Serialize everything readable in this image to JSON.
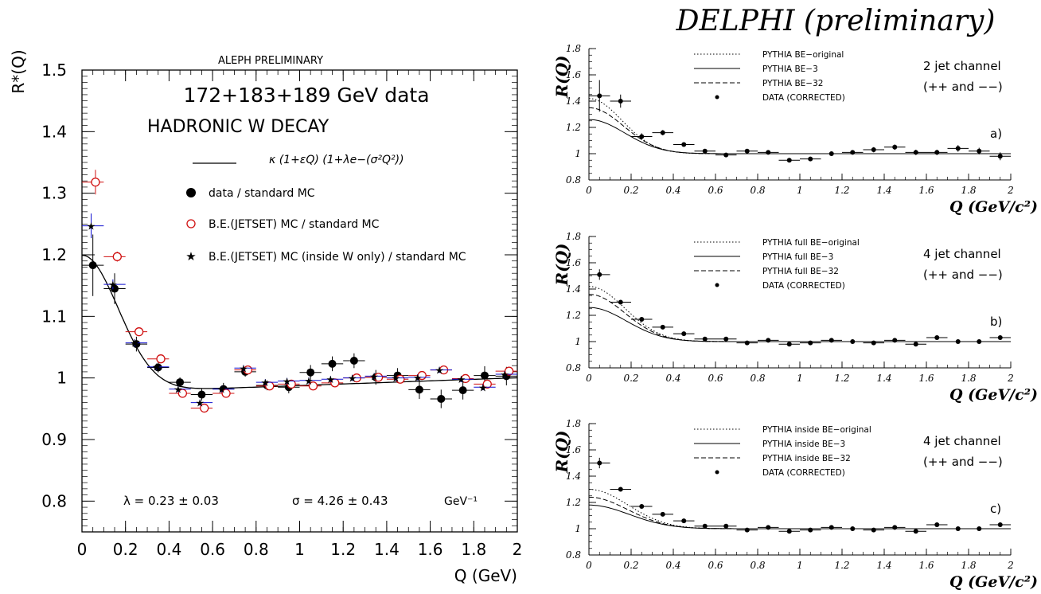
{
  "figure": {
    "delphi_title": "DELPHI (preliminary)"
  },
  "chart_data": [
    {
      "id": "aleph",
      "type": "scatter",
      "title": "ALEPH PRELIMINARY",
      "subtitle_1": "172+183+189 GeV data",
      "subtitle_2": "HADRONIC W DECAY",
      "xlabel": "Q (GeV)",
      "ylabel": "R*(Q)",
      "xlim": [
        0,
        2
      ],
      "ylim": [
        0.75,
        1.5
      ],
      "xticks": [
        "0",
        "0.2",
        "0.4",
        "0.6",
        "0.8",
        "1",
        "1.2",
        "1.4",
        "1.6",
        "1.8",
        "2"
      ],
      "yticks": [
        "0.8",
        "0.9",
        "1",
        "1.1",
        "1.2",
        "1.3",
        "1.4",
        "1.5"
      ],
      "legend": [
        {
          "key": "fit",
          "label": "κ (1+εQ) (1+λe−(σ²Q²))"
        },
        {
          "key": "data",
          "label": "data / standard MC"
        },
        {
          "key": "mc",
          "label": "B.E.(JETSET) MC / standard MC"
        },
        {
          "key": "mcw",
          "label": "B.E.(JETSET) MC (inside W only) / standard MC"
        }
      ],
      "annotations": {
        "lambda": "λ = 0.23   ±  0.03",
        "sigma": "σ = 4.26   ±  0.43",
        "unit": "GeV⁻¹"
      },
      "colors": {
        "data": "#000000",
        "mc": "#d01010",
        "mcw": "#1010d0",
        "fit": "#000000"
      },
      "fit": {
        "kappa": 0.975,
        "epsilon": 0.013,
        "lambda": 0.23,
        "sigma": 4.26
      },
      "series": [
        {
          "name": "data / standard MC",
          "key": "data",
          "x": [
            0.05,
            0.15,
            0.25,
            0.35,
            0.45,
            0.55,
            0.65,
            0.75,
            0.85,
            0.95,
            1.05,
            1.15,
            1.25,
            1.35,
            1.45,
            1.55,
            1.65,
            1.75,
            1.85,
            1.95
          ],
          "y": [
            1.183,
            1.145,
            1.055,
            1.017,
            0.993,
            0.973,
            0.982,
            1.01,
            0.988,
            0.985,
            1.009,
            1.023,
            1.028,
            1.001,
            1.004,
            0.981,
            0.966,
            0.98,
            1.004,
            1.003
          ],
          "yerr": [
            0.05,
            0.025,
            0.012,
            0.008,
            0.008,
            0.01,
            0.01,
            0.008,
            0.008,
            0.01,
            0.012,
            0.012,
            0.012,
            0.012,
            0.012,
            0.015,
            0.015,
            0.015,
            0.015,
            0.015
          ]
        },
        {
          "name": "B.E.(JETSET) MC / standard MC",
          "key": "mc",
          "x": [
            0.05,
            0.15,
            0.25,
            0.35,
            0.45,
            0.55,
            0.65,
            0.75,
            0.85,
            0.95,
            1.05,
            1.15,
            1.25,
            1.35,
            1.45,
            1.55,
            1.65,
            1.75,
            1.85,
            1.95
          ],
          "y": [
            1.318,
            1.197,
            1.075,
            1.031,
            0.975,
            0.951,
            0.975,
            1.013,
            0.987,
            0.99,
            0.987,
            0.992,
            1.0,
            1.001,
            0.998,
            1.004,
            1.013,
            0.999,
            0.99,
            1.011
          ],
          "yerr": [
            0.02,
            0.008,
            0.006,
            0.005,
            0.005,
            0.005,
            0.005,
            0.005,
            0.005,
            0.005,
            0.005,
            0.005,
            0.005,
            0.005,
            0.005,
            0.005,
            0.005,
            0.005,
            0.005,
            0.005
          ]
        },
        {
          "name": "B.E.(JETSET) MC (inside W only) / standard MC",
          "key": "mcw",
          "x": [
            0.05,
            0.15,
            0.25,
            0.35,
            0.45,
            0.55,
            0.65,
            0.75,
            0.85,
            0.95,
            1.05,
            1.15,
            1.25,
            1.35,
            1.45,
            1.55,
            1.65,
            1.75,
            1.85,
            1.95
          ],
          "y": [
            1.247,
            1.152,
            1.057,
            1.018,
            0.982,
            0.96,
            0.982,
            1.016,
            0.993,
            0.995,
            0.996,
            0.998,
            1.0,
            1.003,
            1.0,
            1.001,
            1.013,
            0.998,
            0.985,
            1.006
          ],
          "yerr": [
            0.02,
            0.008,
            0.006,
            0.005,
            0.005,
            0.005,
            0.005,
            0.005,
            0.005,
            0.005,
            0.005,
            0.005,
            0.005,
            0.005,
            0.005,
            0.005,
            0.005,
            0.005,
            0.005,
            0.005
          ]
        }
      ]
    },
    {
      "id": "delphi_a",
      "type": "scatter",
      "xlabel": "Q (GeV/c²)",
      "ylabel": "R(Q)",
      "xlim": [
        0,
        2
      ],
      "ylim": [
        0.8,
        1.8
      ],
      "xticks": [
        "0",
        "0.2",
        "0.4",
        "0.6",
        "0.8",
        "1",
        "1.2",
        "1.4",
        "1.6",
        "1.8",
        "2"
      ],
      "yticks": [
        "0.8",
        "1",
        "1.2",
        "1.4",
        "1.6",
        "1.8"
      ],
      "channel": "2 jet channel",
      "charge": "(++ and −−)",
      "panel_label": "a)",
      "legend": [
        "PYTHIA BE−original",
        "PYTHIA BE−3",
        "PYTHIA BE−32",
        "DATA (CORRECTED)"
      ],
      "curves": [
        {
          "name": "PYTHIA BE−original",
          "style": "dotted",
          "amp": 0.42,
          "w": 0.22
        },
        {
          "name": "PYTHIA BE−3",
          "style": "solid",
          "amp": 0.26,
          "w": 0.24
        },
        {
          "name": "PYTHIA BE−32",
          "style": "dashed",
          "amp": 0.35,
          "w": 0.23
        }
      ],
      "series": [
        {
          "name": "DATA (CORRECTED)",
          "x": [
            0.05,
            0.15,
            0.25,
            0.35,
            0.45,
            0.55,
            0.65,
            0.75,
            0.85,
            0.95,
            1.05,
            1.15,
            1.25,
            1.35,
            1.45,
            1.55,
            1.65,
            1.75,
            1.85,
            1.95
          ],
          "y": [
            1.44,
            1.4,
            1.13,
            1.16,
            1.07,
            1.02,
            0.99,
            1.02,
            1.01,
            0.95,
            0.96,
            1.0,
            1.01,
            1.03,
            1.05,
            1.01,
            1.01,
            1.04,
            1.02,
            0.98
          ],
          "yerr": [
            0.12,
            0.05,
            0.025,
            0.02,
            0.015,
            0.012,
            0.012,
            0.012,
            0.012,
            0.015,
            0.015,
            0.015,
            0.015,
            0.02,
            0.02,
            0.02,
            0.02,
            0.025,
            0.025,
            0.03
          ]
        }
      ]
    },
    {
      "id": "delphi_b",
      "type": "scatter",
      "xlabel": "Q (GeV/c²)",
      "ylabel": "R(Q)",
      "xlim": [
        0,
        2
      ],
      "ylim": [
        0.8,
        1.8
      ],
      "xticks": [
        "0",
        "0.2",
        "0.4",
        "0.6",
        "0.8",
        "1",
        "1.2",
        "1.4",
        "1.6",
        "1.8",
        "2"
      ],
      "yticks": [
        "0.8",
        "1",
        "1.2",
        "1.4",
        "1.6",
        "1.8"
      ],
      "channel": "4 jet channel",
      "charge": "(++ and −−)",
      "panel_label": "b)",
      "legend": [
        "PYTHIA  full BE−original",
        "PYTHIA  full BE−3",
        "PYTHIA  full BE−32",
        "DATA (CORRECTED)"
      ],
      "curves": [
        {
          "name": "PYTHIA  full BE−original",
          "style": "dotted",
          "amp": 0.42,
          "w": 0.24
        },
        {
          "name": "PYTHIA  full BE−3",
          "style": "solid",
          "amp": 0.26,
          "w": 0.25
        },
        {
          "name": "PYTHIA  full BE−32",
          "style": "dashed",
          "amp": 0.36,
          "w": 0.24
        }
      ],
      "series": [
        {
          "name": "DATA (CORRECTED)",
          "x": [
            0.05,
            0.15,
            0.25,
            0.35,
            0.45,
            0.55,
            0.65,
            0.75,
            0.85,
            0.95,
            1.05,
            1.15,
            1.25,
            1.35,
            1.45,
            1.55,
            1.65,
            1.75,
            1.85,
            1.95
          ],
          "y": [
            1.51,
            1.3,
            1.17,
            1.11,
            1.06,
            1.02,
            1.02,
            0.99,
            1.01,
            0.98,
            0.99,
            1.01,
            1.0,
            0.99,
            1.01,
            0.98,
            1.03,
            1.0,
            1.0,
            1.03
          ],
          "yerr": [
            0.04,
            0.015,
            0.01,
            0.01,
            0.008,
            0.008,
            0.008,
            0.008,
            0.008,
            0.008,
            0.008,
            0.008,
            0.008,
            0.008,
            0.008,
            0.008,
            0.008,
            0.008,
            0.008,
            0.008
          ]
        }
      ]
    },
    {
      "id": "delphi_c",
      "type": "scatter",
      "xlabel": "Q (GeV/c²)",
      "ylabel": "R(Q)",
      "xlim": [
        0,
        2
      ],
      "ylim": [
        0.8,
        1.8
      ],
      "xticks": [
        "0",
        "0.2",
        "0.4",
        "0.6",
        "0.8",
        "1",
        "1.2",
        "1.4",
        "1.6",
        "1.8",
        "2"
      ],
      "yticks": [
        "0.8",
        "1",
        "1.2",
        "1.4",
        "1.6",
        "1.8"
      ],
      "channel": "4 jet channel",
      "charge": "(++ and −−)",
      "panel_label": "c)",
      "legend": [
        "PYTHIA  inside BE−original",
        "PYTHIA  inside BE−3",
        "PYTHIA  inside BE−32",
        "DATA (CORRECTED)"
      ],
      "curves": [
        {
          "name": "PYTHIA  inside BE−original",
          "style": "dotted",
          "amp": 0.3,
          "w": 0.26
        },
        {
          "name": "PYTHIA  inside BE−3",
          "style": "solid",
          "amp": 0.18,
          "w": 0.27
        },
        {
          "name": "PYTHIA  inside BE−32",
          "style": "dashed",
          "amp": 0.24,
          "w": 0.26
        }
      ],
      "series": [
        {
          "name": "DATA (CORRECTED)",
          "x": [
            0.05,
            0.15,
            0.25,
            0.35,
            0.45,
            0.55,
            0.65,
            0.75,
            0.85,
            0.95,
            1.05,
            1.15,
            1.25,
            1.35,
            1.45,
            1.55,
            1.65,
            1.75,
            1.85,
            1.95
          ],
          "y": [
            1.5,
            1.3,
            1.17,
            1.11,
            1.06,
            1.02,
            1.02,
            0.99,
            1.01,
            0.98,
            0.99,
            1.01,
            1.0,
            0.99,
            1.01,
            0.98,
            1.03,
            1.0,
            1.0,
            1.03
          ],
          "yerr": [
            0.04,
            0.015,
            0.01,
            0.01,
            0.008,
            0.008,
            0.008,
            0.008,
            0.008,
            0.008,
            0.008,
            0.008,
            0.008,
            0.008,
            0.008,
            0.008,
            0.008,
            0.008,
            0.008,
            0.008
          ]
        }
      ]
    }
  ]
}
